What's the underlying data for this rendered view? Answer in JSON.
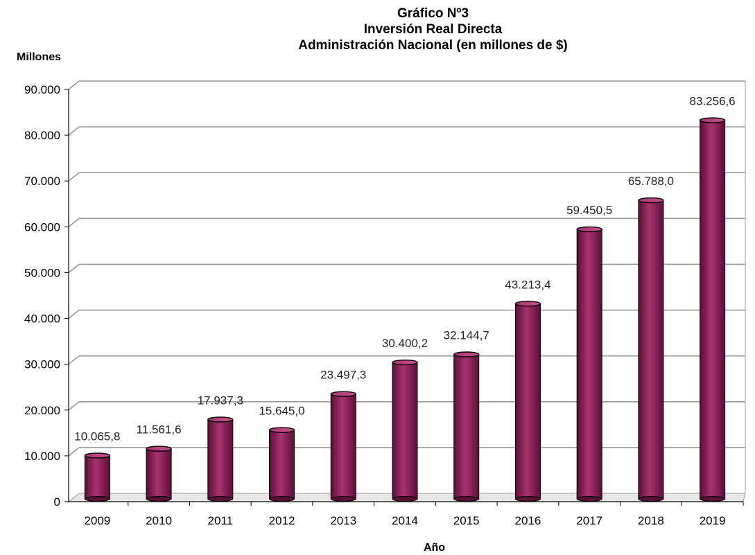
{
  "chart_data": {
    "type": "bar",
    "title": [
      "Gráfico Nº3",
      "Inversión Real Directa",
      "Administración Nacional (en millones de $)"
    ],
    "ylabel": "Millones",
    "xlabel": "Año",
    "categories": [
      "2009",
      "2010",
      "2011",
      "2012",
      "2013",
      "2014",
      "2015",
      "2016",
      "2017",
      "2018",
      "2019"
    ],
    "values": [
      10065.8,
      11561.6,
      17937.3,
      15645.0,
      23497.3,
      30400.2,
      32144.7,
      43213.4,
      59450.5,
      65788.0,
      83256.6
    ],
    "value_labels": [
      "10.065,8",
      "11.561,6",
      "17.937,3",
      "15.645,0",
      "23.497,3",
      "30.400,2",
      "32.144,7",
      "43.213,4",
      "59.450,5",
      "65.788,0",
      "83.256,6"
    ],
    "ylim": [
      0,
      90000
    ],
    "yticks": [
      0,
      10000,
      20000,
      30000,
      40000,
      50000,
      60000,
      70000,
      80000,
      90000
    ],
    "ytick_labels": [
      "0",
      "10.000",
      "20.000",
      "30.000",
      "40.000",
      "50.000",
      "60.000",
      "70.000",
      "80.000",
      "90.000"
    ],
    "grid": true,
    "bar_color": "#a8336e",
    "bar_dark_color": "#5a0f38",
    "grid_color": "#999999"
  }
}
